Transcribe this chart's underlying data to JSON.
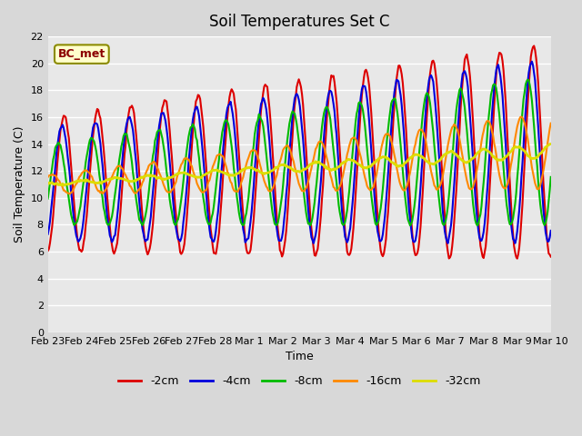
{
  "title": "Soil Temperatures Set C",
  "xlabel": "Time",
  "ylabel": "Soil Temperature (C)",
  "annotation": "BC_met",
  "ylim": [
    0,
    22
  ],
  "series_labels": [
    "-2cm",
    "-4cm",
    "-8cm",
    "-16cm",
    "-32cm"
  ],
  "series_colors": [
    "#dd0000",
    "#0000dd",
    "#00bb00",
    "#ff8800",
    "#dddd00"
  ],
  "line_widths": [
    1.5,
    1.5,
    1.5,
    1.5,
    2.0
  ],
  "tick_labels": [
    "Feb 23",
    "Feb 24",
    "Feb 25",
    "Feb 26",
    "Feb 27",
    "Feb 28",
    "Mar 1",
    "Mar 2",
    "Mar 3",
    "Mar 4",
    "Mar 5",
    "Mar 6",
    "Mar 7",
    "Mar 8",
    "Mar 9",
    "Mar 10"
  ],
  "tick_positions": [
    0,
    1,
    2,
    3,
    4,
    5,
    6,
    7,
    8,
    9,
    10,
    11,
    12,
    13,
    14,
    15
  ],
  "bg_color": "#d8d8d8",
  "plot_bg_color": "#e8e8e8",
  "grid_color": "#ffffff",
  "n_points": 480,
  "yticks": [
    0,
    2,
    4,
    6,
    8,
    10,
    12,
    14,
    16,
    18,
    20,
    22
  ]
}
